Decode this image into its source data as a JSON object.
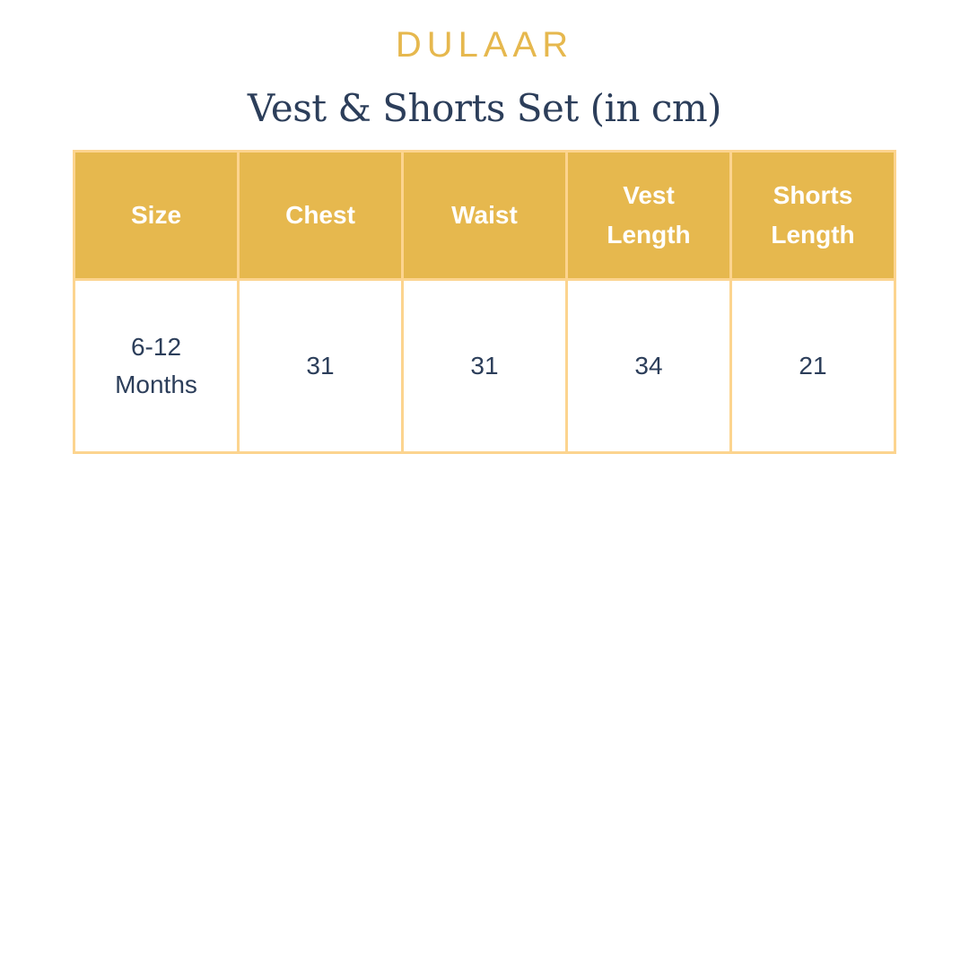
{
  "brand": "DULAAR",
  "title": "Vest & Shorts Set (in cm)",
  "colors": {
    "accent": "#E6B84E",
    "border": "#FCD48F",
    "text": "#2C3E5A"
  },
  "table": {
    "headers": [
      [
        "Size"
      ],
      [
        "Chest"
      ],
      [
        "Waist"
      ],
      [
        "Vest",
        "Length"
      ],
      [
        "Shorts",
        "Length"
      ]
    ],
    "rows": [
      [
        [
          "6-12",
          "Months"
        ],
        [
          "31"
        ],
        [
          "31"
        ],
        [
          "34"
        ],
        [
          "21"
        ]
      ]
    ]
  }
}
